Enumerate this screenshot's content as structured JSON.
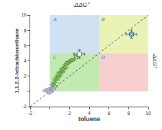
{
  "chart_data": {
    "type": "scatter",
    "title": "-ΔΔG°",
    "right_title": "-ΔΔG°",
    "x_label": "toluene",
    "y_label": "1,1,2,2-tetrachloroethane",
    "xlim": [
      -2,
      10
    ],
    "ylim": [
      -2,
      10
    ],
    "xticks": [
      -2,
      {
        "value": 0,
        "label": null
      },
      2,
      4,
      6,
      8,
      10
    ],
    "yticks": [
      -2,
      {
        "value": 0,
        "label": null
      },
      2,
      4,
      6,
      8,
      10
    ],
    "grid": false,
    "regions": [
      {
        "x": 0,
        "y": 5,
        "w": 5,
        "h": 5,
        "color": "#a8c8e8",
        "label": "A"
      },
      {
        "x": 5,
        "y": 5,
        "w": 5,
        "h": 5,
        "color": "#d8e87a",
        "label": "B"
      },
      {
        "x": 0,
        "y": 0,
        "w": 5,
        "h": 5,
        "color": "#90d870",
        "label": "C"
      },
      {
        "x": 5,
        "y": 0,
        "w": 5,
        "h": 5,
        "color": "#f0a8a8",
        "label": "D"
      }
    ],
    "series": [
      {
        "type": "line",
        "color": "#444444",
        "line_style": "dotted",
        "x": [
          -2,
          10
        ],
        "values": [
          -2,
          10
        ]
      },
      {
        "type": "scatter",
        "marker": "circle",
        "color": "#c8c8dd",
        "edge_color": "#7777aa",
        "error_color": "#555577",
        "x": [
          -0.5,
          -0.3,
          -0.2,
          -0.1,
          0.0,
          0.1,
          0.0,
          0.1,
          0.2,
          0.3,
          0.4,
          0.2,
          -0.1,
          0.0,
          0.3,
          0.5,
          0.4,
          -0.2,
          0.1
        ],
        "values": [
          0.1,
          0.2,
          0.0,
          0.3,
          0.1,
          0.2,
          -0.1,
          0.4,
          0.3,
          0.4,
          0.5,
          0.1,
          -0.2,
          0.0,
          0.2,
          0.6,
          0.3,
          0.1,
          -0.1
        ],
        "x_error": [
          0.3,
          0.28,
          0.25,
          0.3,
          0.28,
          0.3,
          0.25,
          0.3,
          0.28,
          0.3,
          0.28,
          0.25,
          0.28,
          0.3,
          0.28,
          0.3,
          0.28,
          0.25,
          0.3
        ],
        "y_error": [
          0.3,
          0.28,
          0.25,
          0.28,
          0.3,
          0.28,
          0.25,
          0.3,
          0.28,
          0.28,
          0.3,
          0.25,
          0.28,
          0.3,
          0.25,
          0.3,
          0.28,
          0.28,
          0.25
        ]
      },
      {
        "type": "scatter",
        "marker": "circle",
        "color": "#88cc55",
        "edge_color": "#336622",
        "error_color": "#225511",
        "x": [
          0.3,
          0.5,
          0.6,
          0.7,
          0.8,
          0.9,
          1.0,
          1.1,
          1.2,
          1.3,
          1.4,
          1.5,
          1.6,
          1.8,
          2.0,
          2.2,
          2.5,
          2.8
        ],
        "values": [
          0.9,
          1.2,
          1.5,
          1.7,
          1.9,
          2.1,
          2.3,
          2.5,
          2.6,
          2.8,
          3.0,
          3.2,
          3.5,
          3.7,
          3.9,
          4.1,
          4.3,
          4.7
        ],
        "x_error": [
          0.35,
          0.38,
          0.4,
          0.42,
          0.4,
          0.38,
          0.42,
          0.45,
          0.4,
          0.38,
          0.42,
          0.44,
          0.4,
          0.38,
          0.44,
          0.42,
          0.4,
          0.38
        ],
        "y_error": [
          0.25,
          0.28,
          0.3,
          0.3,
          0.28,
          0.32,
          0.3,
          0.32,
          0.28,
          0.3,
          0.32,
          0.3,
          0.28,
          0.3,
          0.32,
          0.3,
          0.32,
          0.3
        ]
      },
      {
        "type": "scatter",
        "marker": "circle",
        "color": "#ffffff",
        "edge_color": "#555555",
        "error_color": "#333333",
        "x": [
          3.0
        ],
        "values": [
          4.9
        ],
        "x_error": [
          0.55
        ],
        "y_error": [
          0.55
        ]
      },
      {
        "type": "scatter",
        "marker": "circle",
        "color": "#77bbdd",
        "edge_color": "#225588",
        "error_color": "#225588",
        "x": [
          8.3
        ],
        "values": [
          7.5
        ],
        "x_error": [
          0.55
        ],
        "y_error": [
          0.55
        ]
      }
    ]
  }
}
